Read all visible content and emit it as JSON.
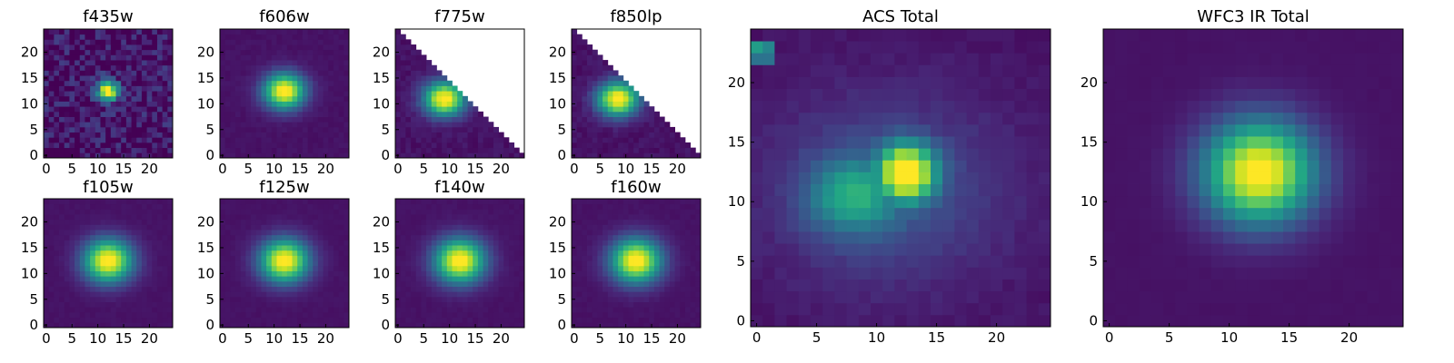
{
  "figure": {
    "colormap": "viridis",
    "background": "#ffffff",
    "axes_color": "#000000"
  },
  "chart_data": [
    {
      "type": "heatmap",
      "title": "f435w",
      "grid_size": 25,
      "masked": false,
      "noise": 0.14,
      "center": [
        12,
        12.5
      ],
      "sigma": [
        1.5,
        1.4
      ],
      "xticks": [
        0,
        5,
        10,
        15,
        20
      ],
      "yticks": [
        0,
        5,
        10,
        15,
        20
      ],
      "xlim": [
        -0.5,
        24.5
      ],
      "ylim": [
        -0.5,
        24.5
      ],
      "value_range": [
        0,
        1
      ],
      "grid": false
    },
    {
      "type": "heatmap",
      "title": "f606w",
      "grid_size": 25,
      "masked": false,
      "noise": 0.015,
      "center": [
        12,
        12.5
      ],
      "sigma": [
        2.8,
        2.4
      ],
      "xticks": [
        0,
        5,
        10,
        15,
        20
      ],
      "yticks": [
        0,
        5,
        10,
        15,
        20
      ],
      "xlim": [
        -0.5,
        24.5
      ],
      "ylim": [
        -0.5,
        24.5
      ],
      "value_range": [
        0,
        1
      ],
      "grid": false
    },
    {
      "type": "heatmap",
      "title": "f775w",
      "grid_size": 25,
      "masked": true,
      "noise": 0.03,
      "center": [
        9,
        11
      ],
      "sigma": [
        2.8,
        2.3
      ],
      "xticks": [
        0,
        5,
        10,
        15,
        20
      ],
      "yticks": [
        0,
        5,
        10,
        15,
        20
      ],
      "xlim": [
        -0.5,
        24.5
      ],
      "ylim": [
        -0.5,
        24.5
      ],
      "value_range": [
        0,
        1
      ],
      "grid": false
    },
    {
      "type": "heatmap",
      "title": "f850lp",
      "grid_size": 25,
      "masked": true,
      "noise": 0.03,
      "center": [
        8.5,
        11
      ],
      "sigma": [
        2.8,
        2.3
      ],
      "xticks": [
        0,
        5,
        10,
        15,
        20
      ],
      "yticks": [
        0,
        5,
        10,
        15,
        20
      ],
      "xlim": [
        -0.5,
        24.5
      ],
      "ylim": [
        -0.5,
        24.5
      ],
      "value_range": [
        0,
        1
      ],
      "grid": false
    },
    {
      "type": "heatmap",
      "title": "f105w",
      "grid_size": 25,
      "masked": false,
      "noise": 0.01,
      "center": [
        12,
        12.5
      ],
      "sigma": [
        3.3,
        2.9
      ],
      "xticks": [
        0,
        5,
        10,
        15,
        20
      ],
      "yticks": [
        0,
        5,
        10,
        15,
        20
      ],
      "xlim": [
        -0.5,
        24.5
      ],
      "ylim": [
        -0.5,
        24.5
      ],
      "value_range": [
        0,
        1
      ],
      "grid": false
    },
    {
      "type": "heatmap",
      "title": "f125w",
      "grid_size": 25,
      "masked": false,
      "noise": 0.01,
      "center": [
        12,
        12.5
      ],
      "sigma": [
        3.3,
        2.9
      ],
      "xticks": [
        0,
        5,
        10,
        15,
        20
      ],
      "yticks": [
        0,
        5,
        10,
        15,
        20
      ],
      "xlim": [
        -0.5,
        24.5
      ],
      "ylim": [
        -0.5,
        24.5
      ],
      "value_range": [
        0,
        1
      ],
      "grid": false
    },
    {
      "type": "heatmap",
      "title": "f140w",
      "grid_size": 25,
      "masked": false,
      "noise": 0.01,
      "center": [
        12,
        12.5
      ],
      "sigma": [
        3.4,
        3.0
      ],
      "xticks": [
        0,
        5,
        10,
        15,
        20
      ],
      "yticks": [
        0,
        5,
        10,
        15,
        20
      ],
      "xlim": [
        -0.5,
        24.5
      ],
      "ylim": [
        -0.5,
        24.5
      ],
      "value_range": [
        0,
        1
      ],
      "grid": false
    },
    {
      "type": "heatmap",
      "title": "f160w",
      "grid_size": 25,
      "masked": false,
      "noise": 0.01,
      "center": [
        12,
        12.5
      ],
      "sigma": [
        3.4,
        3.0
      ],
      "xticks": [
        0,
        5,
        10,
        15,
        20
      ],
      "yticks": [
        0,
        5,
        10,
        15,
        20
      ],
      "xlim": [
        -0.5,
        24.5
      ],
      "ylim": [
        -0.5,
        24.5
      ],
      "value_range": [
        0,
        1
      ],
      "grid": false
    },
    {
      "type": "heatmap",
      "title": "ACS Total",
      "grid_size": 25,
      "masked": false,
      "noise": 0.02,
      "center": [
        12.5,
        12.5
      ],
      "sigma": [
        1.6,
        1.6
      ],
      "secondary_blob": {
        "center": [
          8,
          10.5
        ],
        "sigma": [
          2.6,
          2.2
        ],
        "amplitude": 0.42
      },
      "halo": {
        "center": [
          11,
          11
        ],
        "sigma": [
          7,
          5.5
        ],
        "amplitude": 0.2
      },
      "bright_corner_cells": [
        [
          0,
          23,
          0.55
        ],
        [
          1,
          23,
          0.45
        ],
        [
          0,
          22,
          0.38
        ],
        [
          1,
          22,
          0.38
        ]
      ],
      "xticks": [
        0,
        5,
        10,
        15,
        20
      ],
      "yticks": [
        0,
        5,
        10,
        15,
        20
      ],
      "xlim": [
        -0.5,
        24.5
      ],
      "ylim": [
        -0.5,
        24.5
      ],
      "value_range": [
        0,
        1
      ],
      "grid": false
    },
    {
      "type": "heatmap",
      "title": "WFC3 IR Total",
      "grid_size": 25,
      "masked": false,
      "noise": 0.005,
      "center": [
        12.5,
        12.5
      ],
      "sigma": [
        3.2,
        3.0
      ],
      "xticks": [
        0,
        5,
        10,
        15,
        20
      ],
      "yticks": [
        0,
        5,
        10,
        15,
        20
      ],
      "xlim": [
        -0.5,
        24.5
      ],
      "ylim": [
        -0.5,
        24.5
      ],
      "value_range": [
        0,
        1
      ],
      "grid": false
    }
  ]
}
